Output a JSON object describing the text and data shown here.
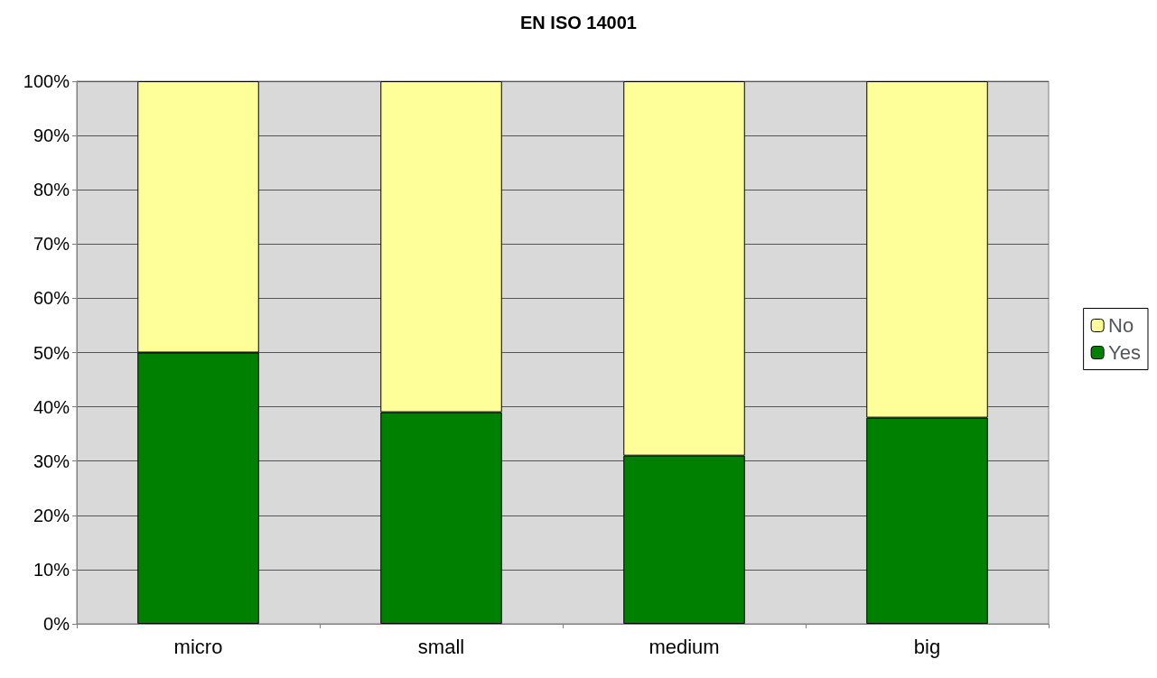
{
  "chart_data": {
    "type": "bar",
    "title": "EN ISO 14001",
    "categories": [
      "micro",
      "small",
      "medium",
      "big"
    ],
    "stacked": true,
    "series": [
      {
        "name": "Yes",
        "color": "#008000",
        "values": [
          50,
          39,
          31,
          38
        ]
      },
      {
        "name": "No",
        "color": "#ffff99",
        "values": [
          50,
          61,
          69,
          62
        ]
      }
    ],
    "ylim": [
      0,
      100
    ],
    "yticks": [
      {
        "value": 0,
        "label": "0%"
      },
      {
        "value": 10,
        "label": "10%"
      },
      {
        "value": 20,
        "label": "20%"
      },
      {
        "value": 30,
        "label": "30%"
      },
      {
        "value": 40,
        "label": "40%"
      },
      {
        "value": 50,
        "label": "50%"
      },
      {
        "value": 60,
        "label": "60%"
      },
      {
        "value": 70,
        "label": "70%"
      },
      {
        "value": 80,
        "label": "80%"
      },
      {
        "value": 90,
        "label": "90%"
      },
      {
        "value": 100,
        "label": "100%"
      }
    ],
    "grid": "y",
    "legend": "right"
  }
}
